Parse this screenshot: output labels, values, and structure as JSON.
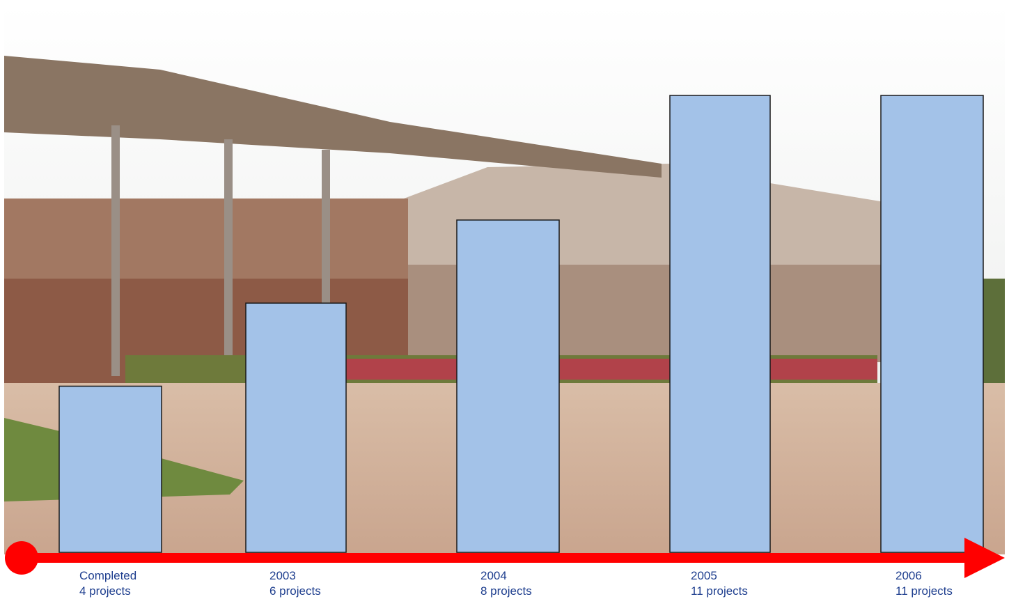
{
  "chart_data": {
    "type": "bar",
    "categories": [
      "Completed",
      "2003",
      "2004",
      "2005",
      "2006"
    ],
    "category_sublabels": [
      "4 projects",
      "6 projects",
      "8 projects",
      "11 projects",
      "11 projects"
    ],
    "values": [
      4,
      6,
      8,
      11,
      11
    ],
    "ylim": [
      0,
      11
    ],
    "grid": false,
    "legend": "none"
  },
  "colors": {
    "bar_fill": "#a3c2e8",
    "bar_stroke": "#1a1a1a",
    "timeline": "#ff0000",
    "label_text": "#1f3f8f",
    "sky": "#eef0ee",
    "roof": "#8d7360",
    "stone_wall": "#a07a66",
    "plaster_wall": "#c8b8aa",
    "paving": "#d8b9a2",
    "grass": "#6f8a3f",
    "flowers": "#b8373d"
  },
  "background": {
    "kind": "photo-building-campus"
  }
}
